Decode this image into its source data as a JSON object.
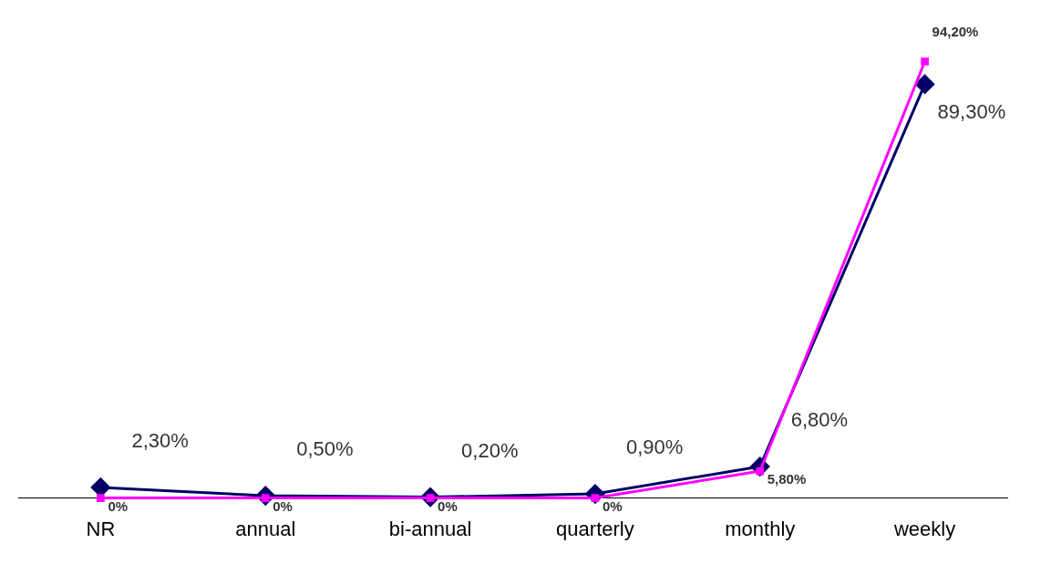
{
  "chart_data": {
    "type": "line",
    "categories": [
      "NR",
      "annual",
      "bi-annual",
      "quarterly",
      "monthly",
      "weekly"
    ],
    "series": [
      {
        "color": "#000066",
        "marker": "diamond",
        "values": [
          2.3,
          0.5,
          0.2,
          0.9,
          6.8,
          89.3
        ],
        "value_labels": [
          "2,30%",
          "0,50%",
          "0,20%",
          "0,90%",
          "6,80%",
          "89,30%"
        ]
      },
      {
        "color": "#ff00ff",
        "marker": "square",
        "values": [
          0,
          0,
          0,
          0,
          5.8,
          94.2
        ],
        "value_labels": [
          "0%",
          "0%",
          "0%",
          "0%",
          "5,80%",
          "94,20%"
        ]
      }
    ],
    "grid": false,
    "legend": false,
    "tick_labels": "x"
  }
}
